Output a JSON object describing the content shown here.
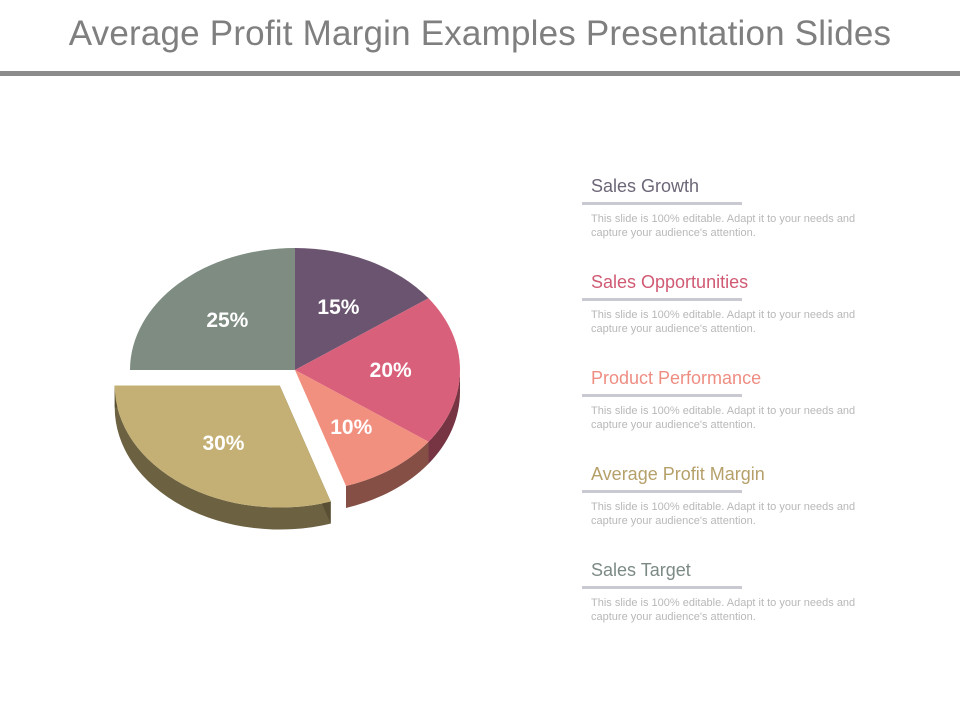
{
  "slide": {
    "title": "Average Profit Margin Examples Presentation Slides"
  },
  "chart_data": {
    "type": "pie",
    "title": "",
    "slices": [
      {
        "category": "Sales Growth",
        "value": 15,
        "label": "15%",
        "color": "#6b5470"
      },
      {
        "category": "Sales Opportunities",
        "value": 20,
        "label": "20%",
        "color": "#d9607a"
      },
      {
        "category": "Product Performance",
        "value": 10,
        "label": "10%",
        "color": "#f2907f"
      },
      {
        "category": "Average Profit Margin",
        "value": 30,
        "label": "30%",
        "color": "#c4b074"
      },
      {
        "category": "Sales Target",
        "value": 25,
        "label": "25%",
        "color": "#7e8c82"
      }
    ]
  },
  "legend": {
    "items": [
      {
        "heading": "Sales Growth",
        "color": "#6d6678",
        "description": "This slide is 100% editable. Adapt it to your needs and capture your audience's attention."
      },
      {
        "heading": "Sales Opportunities",
        "color": "#d05a73",
        "description": "This slide is 100% editable. Adapt it to your needs and capture your audience's attention."
      },
      {
        "heading": "Product Performance",
        "color": "#ee8d82",
        "description": "This slide is 100% editable. Adapt it to your needs and capture your audience's attention."
      },
      {
        "heading": "Average Profit Margin",
        "color": "#b6a06a",
        "description": "This slide is 100% editable. Adapt it to your needs and capture your audience's attention."
      },
      {
        "heading": "Sales Target",
        "color": "#7c8a85",
        "description": "This slide is 100% editable. Adapt it to your needs and capture your audience's attention."
      }
    ]
  }
}
